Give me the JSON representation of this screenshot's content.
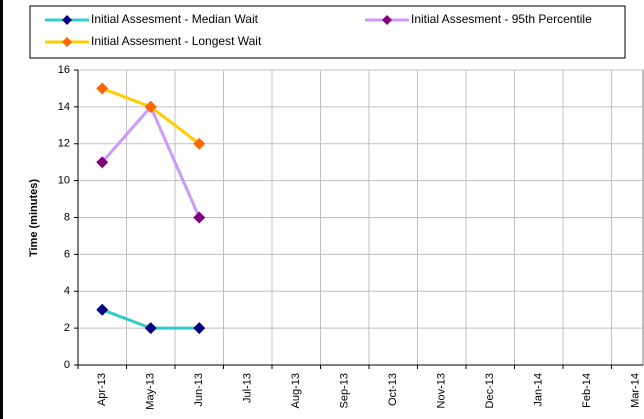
{
  "chart_data": {
    "type": "line",
    "y_label": "Time (minutes)",
    "categories": [
      "Apr-13",
      "May-13",
      "Jun-13",
      "Jul-13",
      "Aug-13",
      "Sep-13",
      "Oct-13",
      "Nov-13",
      "Dec-13",
      "Jan-14",
      "Feb-14",
      "Mar-14"
    ],
    "series": [
      {
        "name": "Initial Assesment - Median Wait",
        "color": "#33cccc",
        "marker_color": "#000080",
        "values": [
          3,
          2,
          2,
          null,
          null,
          null,
          null,
          null,
          null,
          null,
          null,
          null
        ]
      },
      {
        "name": "Initial Assesment - 95th Percentile",
        "color": "#cc99ff",
        "marker_color": "#800080",
        "values": [
          11,
          14,
          8,
          null,
          null,
          null,
          null,
          null,
          null,
          null,
          null,
          null
        ]
      },
      {
        "name": "Initial Assesment - Longest Wait",
        "color": "#ffcc00",
        "marker_color": "#ff6600",
        "values": [
          15,
          14,
          12,
          null,
          null,
          null,
          null,
          null,
          null,
          null,
          null,
          null
        ]
      }
    ],
    "ylim": [
      0,
      16
    ],
    "yticks": [
      0,
      2,
      4,
      6,
      8,
      10,
      12,
      14,
      16
    ],
    "grid": true,
    "legend": "top"
  }
}
